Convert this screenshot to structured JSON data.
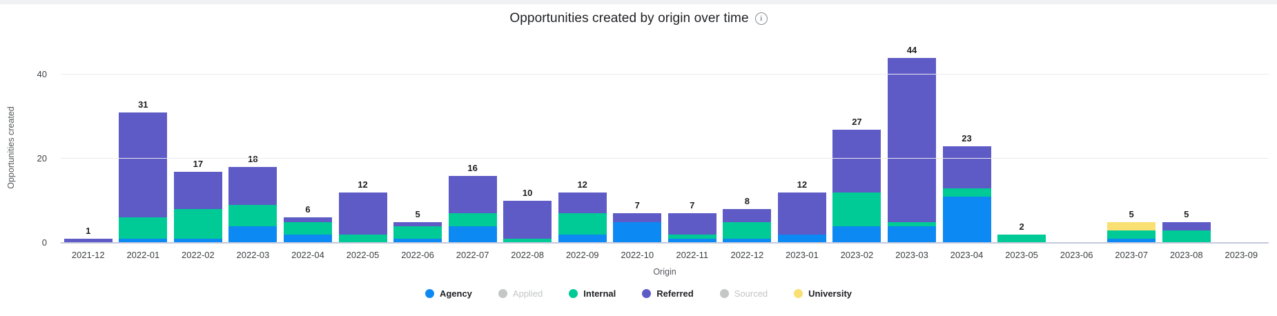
{
  "header": {
    "title": "Opportunities created by origin over time",
    "info_glyph": "i"
  },
  "chart_data": {
    "type": "bar",
    "stacked": true,
    "title": "Opportunities created by origin over time",
    "xlabel": "Origin",
    "ylabel": "Opportunities created",
    "ylim": [
      0,
      45
    ],
    "yticks": [
      0,
      20,
      40
    ],
    "grid": "horizontal",
    "legend_position": "bottom",
    "categories": [
      "2021-12",
      "2022-01",
      "2022-02",
      "2022-03",
      "2022-04",
      "2022-05",
      "2022-06",
      "2022-07",
      "2022-08",
      "2022-09",
      "2022-10",
      "2022-11",
      "2022-12",
      "2023-01",
      "2023-02",
      "2023-03",
      "2023-04",
      "2023-05",
      "2023-06",
      "2023-07",
      "2023-08",
      "2023-09"
    ],
    "series": [
      {
        "name": "Agency",
        "color": "#0d89f4",
        "disabled": false,
        "values": [
          0,
          1,
          1,
          4,
          2,
          0,
          1,
          4,
          0,
          2,
          5,
          1,
          1,
          2,
          4,
          4,
          11,
          0,
          0,
          1,
          0,
          0
        ]
      },
      {
        "name": "Applied",
        "color": "#c4c7c5",
        "disabled": true,
        "values": [
          0,
          0,
          0,
          0,
          0,
          0,
          0,
          0,
          0,
          0,
          0,
          0,
          0,
          0,
          0,
          0,
          0,
          0,
          0,
          0,
          0,
          0
        ]
      },
      {
        "name": "Internal",
        "color": "#00ca96",
        "disabled": false,
        "values": [
          0,
          5,
          7,
          5,
          3,
          2,
          3,
          3,
          1,
          5,
          0,
          1,
          4,
          0,
          8,
          1,
          2,
          2,
          0,
          2,
          3,
          0
        ]
      },
      {
        "name": "Referred",
        "color": "#5e5bc7",
        "disabled": false,
        "values": [
          1,
          25,
          9,
          9,
          1,
          10,
          1,
          9,
          9,
          5,
          2,
          5,
          3,
          10,
          15,
          39,
          10,
          0,
          0,
          0,
          2,
          0
        ]
      },
      {
        "name": "Sourced",
        "color": "#c4c7c5",
        "disabled": true,
        "values": [
          0,
          0,
          0,
          0,
          0,
          0,
          0,
          0,
          0,
          0,
          0,
          0,
          0,
          0,
          0,
          0,
          0,
          0,
          0,
          0,
          0,
          0
        ]
      },
      {
        "name": "University",
        "color": "#fae073",
        "disabled": false,
        "values": [
          0,
          0,
          0,
          0,
          0,
          0,
          0,
          0,
          0,
          0,
          0,
          0,
          0,
          0,
          0,
          0,
          0,
          0,
          0,
          2,
          0,
          0
        ]
      }
    ],
    "totals": [
      1,
      31,
      17,
      18,
      6,
      12,
      5,
      16,
      10,
      12,
      7,
      7,
      8,
      12,
      27,
      44,
      23,
      2,
      0,
      5,
      5,
      0
    ],
    "colors": {
      "grid": "#e9eaed",
      "baseline": "#c4c8dc",
      "total_label": "#1c1d1f",
      "tick_label": "#3c4043",
      "disabled_legend_text": "#c2c5c3"
    }
  }
}
